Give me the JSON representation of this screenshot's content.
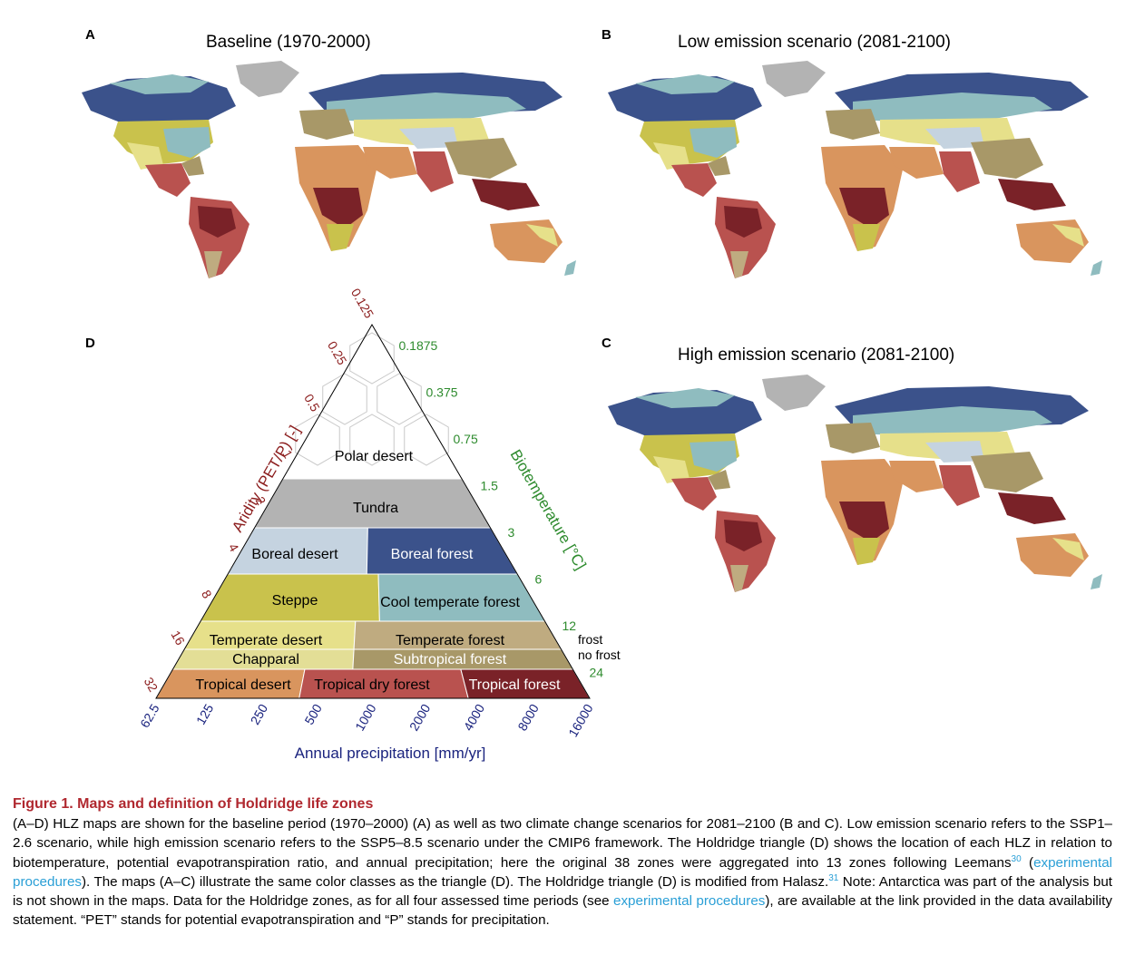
{
  "panels": {
    "A": {
      "letter": "A",
      "title": "Baseline (1970-2000)"
    },
    "B": {
      "letter": "B",
      "title": "Low emission scenario (2081-2100)"
    },
    "C": {
      "letter": "C",
      "title": "High emission scenario (2081-2100)"
    },
    "D": {
      "letter": "D"
    }
  },
  "triangle": {
    "aridity_axis_label": "Aridity (PET/P) [-]",
    "aridity_ticks": [
      "0.125",
      "0.25",
      "0.5",
      "1",
      "2",
      "4",
      "8",
      "16",
      "32"
    ],
    "biotemp_axis_label": "Biotemperature [°C]",
    "biotemp_ticks": [
      "0.1875",
      "0.375",
      "0.75",
      "1.5",
      "3",
      "6",
      "12",
      "24"
    ],
    "precip_axis_label": "Annual precipitation [mm/yr]",
    "precip_ticks": [
      "62.5",
      "125",
      "250",
      "500",
      "1000",
      "2000",
      "4000",
      "8000",
      "16000"
    ],
    "frost_label": "frost",
    "no_frost_label": "no frost",
    "zones": {
      "polar_desert": "Polar desert",
      "tundra": "Tundra",
      "boreal_desert": "Boreal desert",
      "boreal_forest": "Boreal forest",
      "steppe": "Steppe",
      "cool_temperate_forest": "Cool temperate forest",
      "temperate_desert": "Temperate desert",
      "temperate_forest": "Temperate forest",
      "chapparal": "Chapparal",
      "subtropical_forest": "Subtropical forest",
      "tropical_desert": "Tropical desert",
      "tropical_dry_forest": "Tropical dry forest",
      "tropical_forest": "Tropical forest"
    },
    "colors": {
      "polar_desert": "#ffffff",
      "tundra": "#b3b3b3",
      "boreal_desert": "#c5d3e0",
      "boreal_forest": "#3b528b",
      "steppe": "#c9c24c",
      "cool_temperate_forest": "#8fbcbf",
      "temperate_desert": "#e6e08a",
      "temperate_forest": "#bfab80",
      "chapparal": "#e3de96",
      "subtropical_forest": "#a89868",
      "tropical_desert": "#d9955e",
      "tropical_dry_forest": "#b9524f",
      "tropical_forest": "#7a2228"
    }
  },
  "caption": {
    "title": "Figure 1.  Maps and definition of Holdridge life zones",
    "p1": "(A–D) HLZ maps are shown for the baseline period (1970–2000) (A) as well as two climate change scenarios for 2081–2100 (B and C). Low emission scenario refers to the SSP1–2.6 scenario, while high emission scenario refers to the SSP5–8.5 scenario under the CMIP6 framework. The Holdridge triangle (D) shows the location of each HLZ in relation to biotemperature, potential evapotranspiration ratio, and annual precipitation; here the original 38 zones were aggregated into 13 zones following Leemans",
    "ref1": "30",
    "link1": "experimental procedures",
    "p2": "). The maps (A–C) illustrate the same color classes as the triangle (D). The Holdridge triangle (D) is modified from Halasz.",
    "ref2": "31",
    "p3": " Note: Antarctica was part of the analysis but is not shown in the maps. Data for the Holdridge zones, as for all four assessed time periods (see ",
    "link2": "experimental procedures",
    "p4": "), are available at the link provided in the data availability statement. “PET” stands for potential evapotranspiration and “P” stands for precipitation."
  }
}
